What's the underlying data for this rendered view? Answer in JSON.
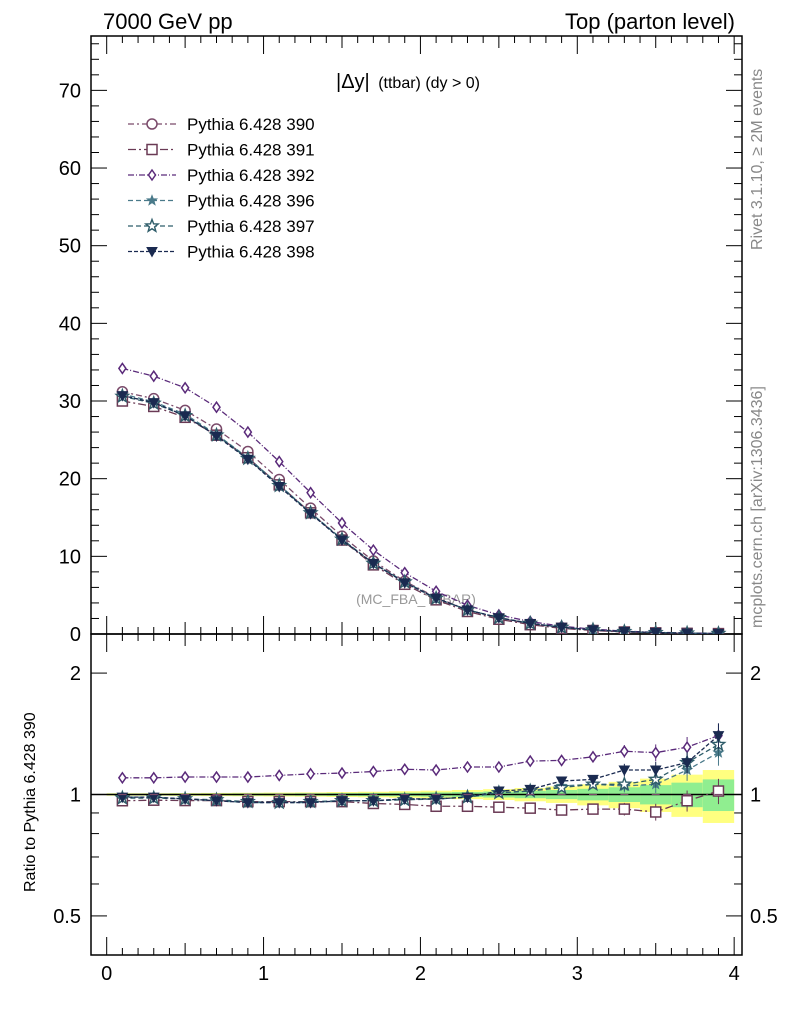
{
  "header": {
    "left": "7000 GeV pp",
    "right": "Top (parton level)"
  },
  "side_labels": {
    "rivet": "Rivet 3.1.10, ≥ 2M events",
    "mcplots": "mcplots.cern.ch [arXiv:1306.3436]"
  },
  "plot_title": {
    "main": "|Δy|",
    "sub": "(ttbar) (dy > 0)"
  },
  "watermark": "(MC_FBA_TTBAR)",
  "ratio_ylabel": "Ratio to Pythia 6.428 390",
  "colors": {
    "s390": "#7a4a6a",
    "s391": "#6a3a55",
    "s392": "#5a2a7a",
    "s396": "#4a7a8a",
    "s397": "#2f5d6a",
    "s398": "#1a2a50",
    "band_inner": "#90ee90",
    "band_outer": "#ffff80",
    "ref_line": "#000000"
  },
  "chart_data": [
    {
      "type": "line",
      "panel": "main",
      "xlim": [
        -0.1,
        4.05
      ],
      "ylim": [
        0,
        77
      ],
      "yticks": [
        0,
        10,
        20,
        30,
        40,
        50,
        60,
        70
      ],
      "ytick_labels": [
        "0",
        "10",
        "20",
        "30",
        "40",
        "50",
        "60",
        "70"
      ],
      "x": [
        0.1,
        0.3,
        0.5,
        0.7,
        0.9,
        1.1,
        1.3,
        1.5,
        1.7,
        1.9,
        2.1,
        2.3,
        2.5,
        2.7,
        2.9,
        3.1,
        3.3,
        3.5,
        3.7,
        3.9
      ],
      "legend_position": "top-left",
      "series": [
        {
          "name": "Pythia 6.428 390",
          "marker": "circle-open",
          "color": "#7a4a6a",
          "dash": "6,3,2,3",
          "values": [
            31.2,
            30.3,
            28.8,
            26.4,
            23.5,
            19.9,
            16.2,
            12.6,
            9.4,
            6.8,
            4.7,
            3.1,
            2.05,
            1.3,
            0.8,
            0.48,
            0.28,
            0.16,
            0.09,
            0.05
          ]
        },
        {
          "name": "Pythia 6.428 391",
          "marker": "square-open",
          "color": "#6a3a55",
          "dash": "8,3,2,3",
          "values": [
            30.0,
            29.3,
            27.9,
            25.6,
            22.7,
            19.2,
            15.6,
            12.1,
            8.9,
            6.4,
            4.4,
            2.9,
            1.9,
            1.2,
            0.73,
            0.45,
            0.26,
            0.15,
            0.088,
            0.052
          ]
        },
        {
          "name": "Pythia 6.428 392",
          "marker": "diamond-open",
          "color": "#5a2a7a",
          "dash": "6,2,1,2",
          "values": [
            34.2,
            33.2,
            31.7,
            29.2,
            26.0,
            22.2,
            18.2,
            14.3,
            10.8,
            7.9,
            5.5,
            3.7,
            2.45,
            1.6,
            1.0,
            0.62,
            0.37,
            0.22,
            0.13,
            0.075
          ]
        },
        {
          "name": "Pythia 6.428 396",
          "marker": "star-small",
          "color": "#4a7a8a",
          "dash": "5,3",
          "values": [
            30.9,
            29.9,
            28.3,
            25.7,
            22.7,
            19.2,
            15.6,
            12.2,
            9.1,
            6.7,
            4.6,
            3.1,
            2.1,
            1.37,
            0.86,
            0.53,
            0.31,
            0.18,
            0.11,
            0.064
          ]
        },
        {
          "name": "Pythia 6.428 397",
          "marker": "star-open",
          "color": "#2f5d6a",
          "dash": "5,3",
          "values": [
            30.6,
            29.7,
            28.1,
            25.6,
            22.6,
            19.1,
            15.6,
            12.2,
            9.1,
            6.7,
            4.6,
            3.1,
            2.1,
            1.37,
            0.85,
            0.53,
            0.31,
            0.18,
            0.11,
            0.068
          ]
        },
        {
          "name": "Pythia 6.428 398",
          "marker": "triangle-down-filled",
          "color": "#1a2a50",
          "dash": "4,2",
          "values": [
            30.7,
            29.8,
            28.1,
            25.5,
            22.5,
            19.0,
            15.5,
            12.1,
            9.1,
            6.6,
            4.6,
            3.1,
            2.1,
            1.36,
            0.87,
            0.53,
            0.32,
            0.19,
            0.105,
            0.07
          ]
        }
      ]
    },
    {
      "type": "line",
      "panel": "ratio",
      "ylabel": "Ratio to Pythia 6.428 390",
      "xlim": [
        -0.1,
        4.05
      ],
      "ylim": [
        0.4,
        2.5
      ],
      "log_y": true,
      "yticks": [
        0.5,
        1,
        2
      ],
      "ytick_labels": [
        "0.5",
        "1",
        "2"
      ],
      "xticks": [
        0,
        1,
        2,
        3,
        4
      ],
      "xtick_labels": [
        "0",
        "1",
        "2",
        "3",
        "4"
      ],
      "x": [
        0.1,
        0.3,
        0.5,
        0.7,
        0.9,
        1.1,
        1.3,
        1.5,
        1.7,
        1.9,
        2.1,
        2.3,
        2.5,
        2.7,
        2.9,
        3.1,
        3.3,
        3.5,
        3.7,
        3.9
      ],
      "series": [
        {
          "name": "Pythia 6.428 391",
          "values": [
            0.965,
            0.968,
            0.966,
            0.966,
            0.96,
            0.96,
            0.96,
            0.96,
            0.95,
            0.945,
            0.935,
            0.935,
            0.93,
            0.925,
            0.915,
            0.92,
            0.92,
            0.905,
            0.965,
            1.02
          ]
        },
        {
          "name": "Pythia 6.428 392",
          "values": [
            1.1,
            1.1,
            1.105,
            1.105,
            1.105,
            1.115,
            1.125,
            1.13,
            1.14,
            1.155,
            1.15,
            1.17,
            1.17,
            1.21,
            1.215,
            1.24,
            1.28,
            1.27,
            1.31,
            1.4
          ]
        },
        {
          "name": "Pythia 6.428 396",
          "values": [
            0.985,
            0.985,
            0.975,
            0.965,
            0.955,
            0.955,
            0.955,
            0.965,
            0.965,
            0.975,
            0.975,
            0.985,
            1.01,
            1.02,
            1.05,
            1.06,
            1.05,
            1.06,
            1.15,
            1.27
          ]
        },
        {
          "name": "Pythia 6.428 397",
          "values": [
            0.98,
            0.98,
            0.975,
            0.97,
            0.96,
            0.955,
            0.96,
            0.965,
            0.965,
            0.97,
            0.975,
            0.985,
            1.01,
            1.02,
            1.04,
            1.06,
            1.06,
            1.09,
            1.2,
            1.33
          ]
        },
        {
          "name": "Pythia 6.428 398",
          "values": [
            0.985,
            0.985,
            0.975,
            0.965,
            0.955,
            0.955,
            0.955,
            0.965,
            0.965,
            0.975,
            0.975,
            0.985,
            1.02,
            1.03,
            1.08,
            1.09,
            1.15,
            1.15,
            1.2,
            1.4
          ]
        }
      ],
      "band_inner_halfwidth": [
        0.004,
        0.004,
        0.005,
        0.005,
        0.006,
        0.006,
        0.007,
        0.008,
        0.009,
        0.01,
        0.012,
        0.014,
        0.017,
        0.021,
        0.026,
        0.033,
        0.042,
        0.055,
        0.07,
        0.09
      ],
      "band_outer_halfwidth": [
        0.007,
        0.007,
        0.008,
        0.009,
        0.01,
        0.011,
        0.012,
        0.014,
        0.016,
        0.019,
        0.022,
        0.026,
        0.031,
        0.038,
        0.047,
        0.06,
        0.075,
        0.095,
        0.12,
        0.15
      ]
    }
  ]
}
